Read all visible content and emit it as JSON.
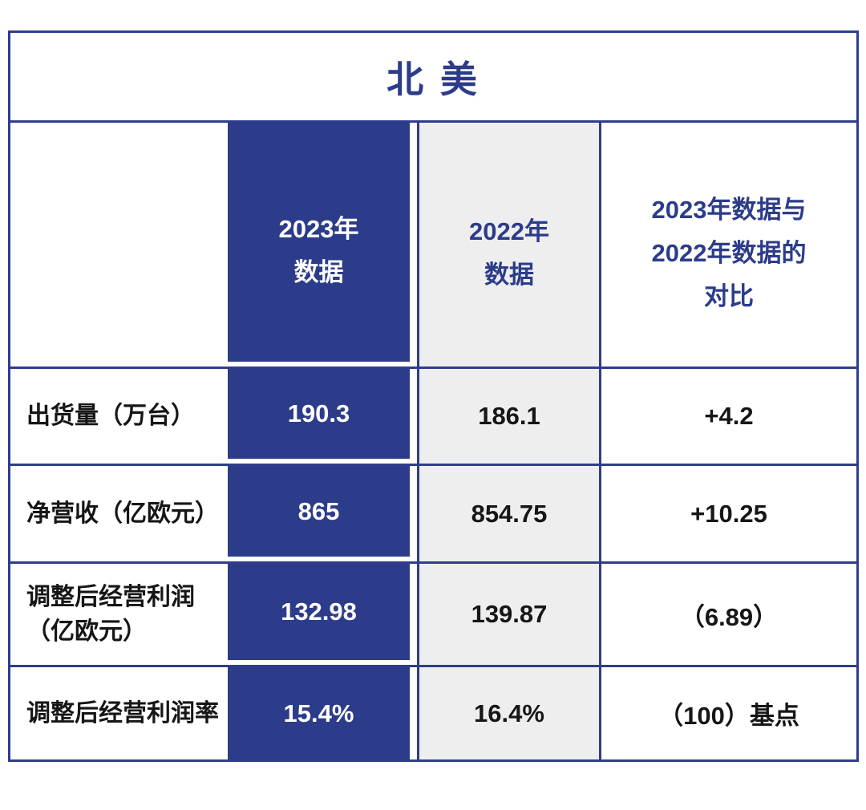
{
  "chart_data": {
    "type": "table",
    "title": "北 美",
    "columns": [
      "",
      "2023年数据",
      "2022年数据",
      "2023年数据与2022年数据的对比"
    ],
    "rows": [
      {
        "label": "出货量（万台）",
        "y2023": "190.3",
        "y2022": "186.1",
        "change": "+4.2"
      },
      {
        "label": "净营收（亿欧元）",
        "y2023": "865",
        "y2022": "854.75",
        "change": "+10.25"
      },
      {
        "label": "调整后经营利润（亿欧元）",
        "y2023": "132.98",
        "y2022": "139.87",
        "change": "（6.89）"
      },
      {
        "label": "调整后经营利润率",
        "y2023": "15.4%",
        "y2022": "16.4%",
        "change": "（100）基点"
      }
    ]
  },
  "ui": {
    "title": "北 美",
    "headers": {
      "col2023": "2023年\n数据",
      "col2022": "2022年\n数据",
      "comparison": "2023年数据与\n2022年数据的\n对比"
    },
    "row_labels": [
      "出货量（万台）",
      "净营收（亿欧元）",
      "调整后经营利润\n（亿欧元）",
      "调整后经营利润率"
    ],
    "colors": {
      "navy": "#2c3c8a",
      "border_navy": "#2e3d8e",
      "light_gray": "#eeeeef",
      "text_dark": "#161616",
      "white": "#ffffff"
    }
  }
}
